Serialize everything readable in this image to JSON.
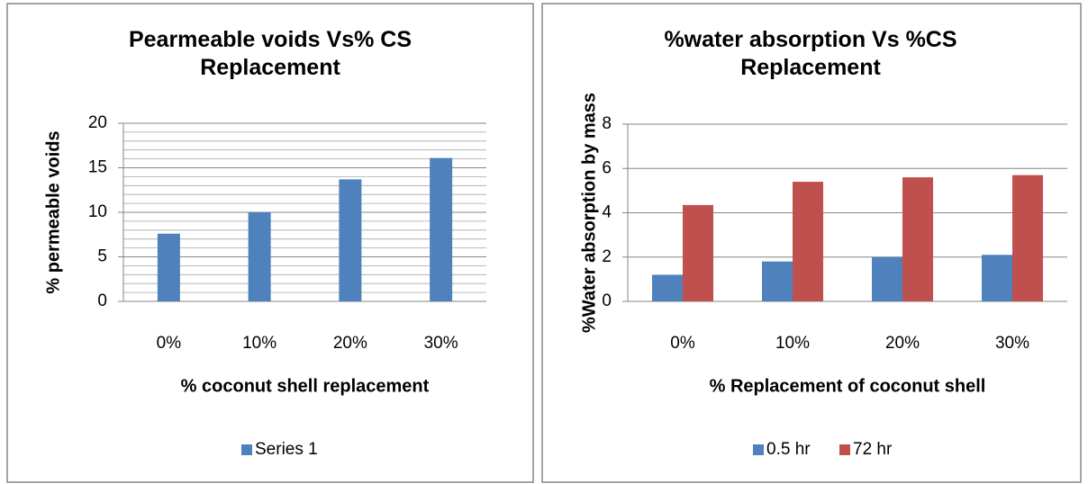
{
  "chart_data": [
    {
      "type": "bar",
      "title": "Pearmeable voids Vs% CS Replacement",
      "x_label": "% coconut shell replacement",
      "y_label": "% permeable voids",
      "categories": [
        "0%",
        "10%",
        "20%",
        "30%"
      ],
      "series": [
        {
          "name": "Series 1",
          "color": "#4f81bd",
          "values": [
            7.6,
            10,
            13.7,
            16.1
          ]
        }
      ],
      "ylim": [
        0,
        20
      ],
      "yticks": [
        0,
        5,
        10,
        15,
        20
      ],
      "grid": true,
      "minor_grid_step": 1,
      "legend": "bottom"
    },
    {
      "type": "bar",
      "title": "%water absorption Vs %CS Replacement",
      "x_label": "% Replacement of coconut shell",
      "y_label": "%Water absorption by mass",
      "categories": [
        "0%",
        "10%",
        "20%",
        "30%"
      ],
      "series": [
        {
          "name": "0.5 hr",
          "color": "#4f81bd",
          "values": [
            1.2,
            1.8,
            2.0,
            2.1
          ]
        },
        {
          "name": "72 hr",
          "color": "#c0504d",
          "values": [
            4.35,
            5.4,
            5.6,
            5.7
          ]
        }
      ],
      "ylim": [
        0,
        8
      ],
      "yticks": [
        0,
        2,
        4,
        6,
        8
      ],
      "grid": true,
      "legend": "bottom"
    }
  ]
}
